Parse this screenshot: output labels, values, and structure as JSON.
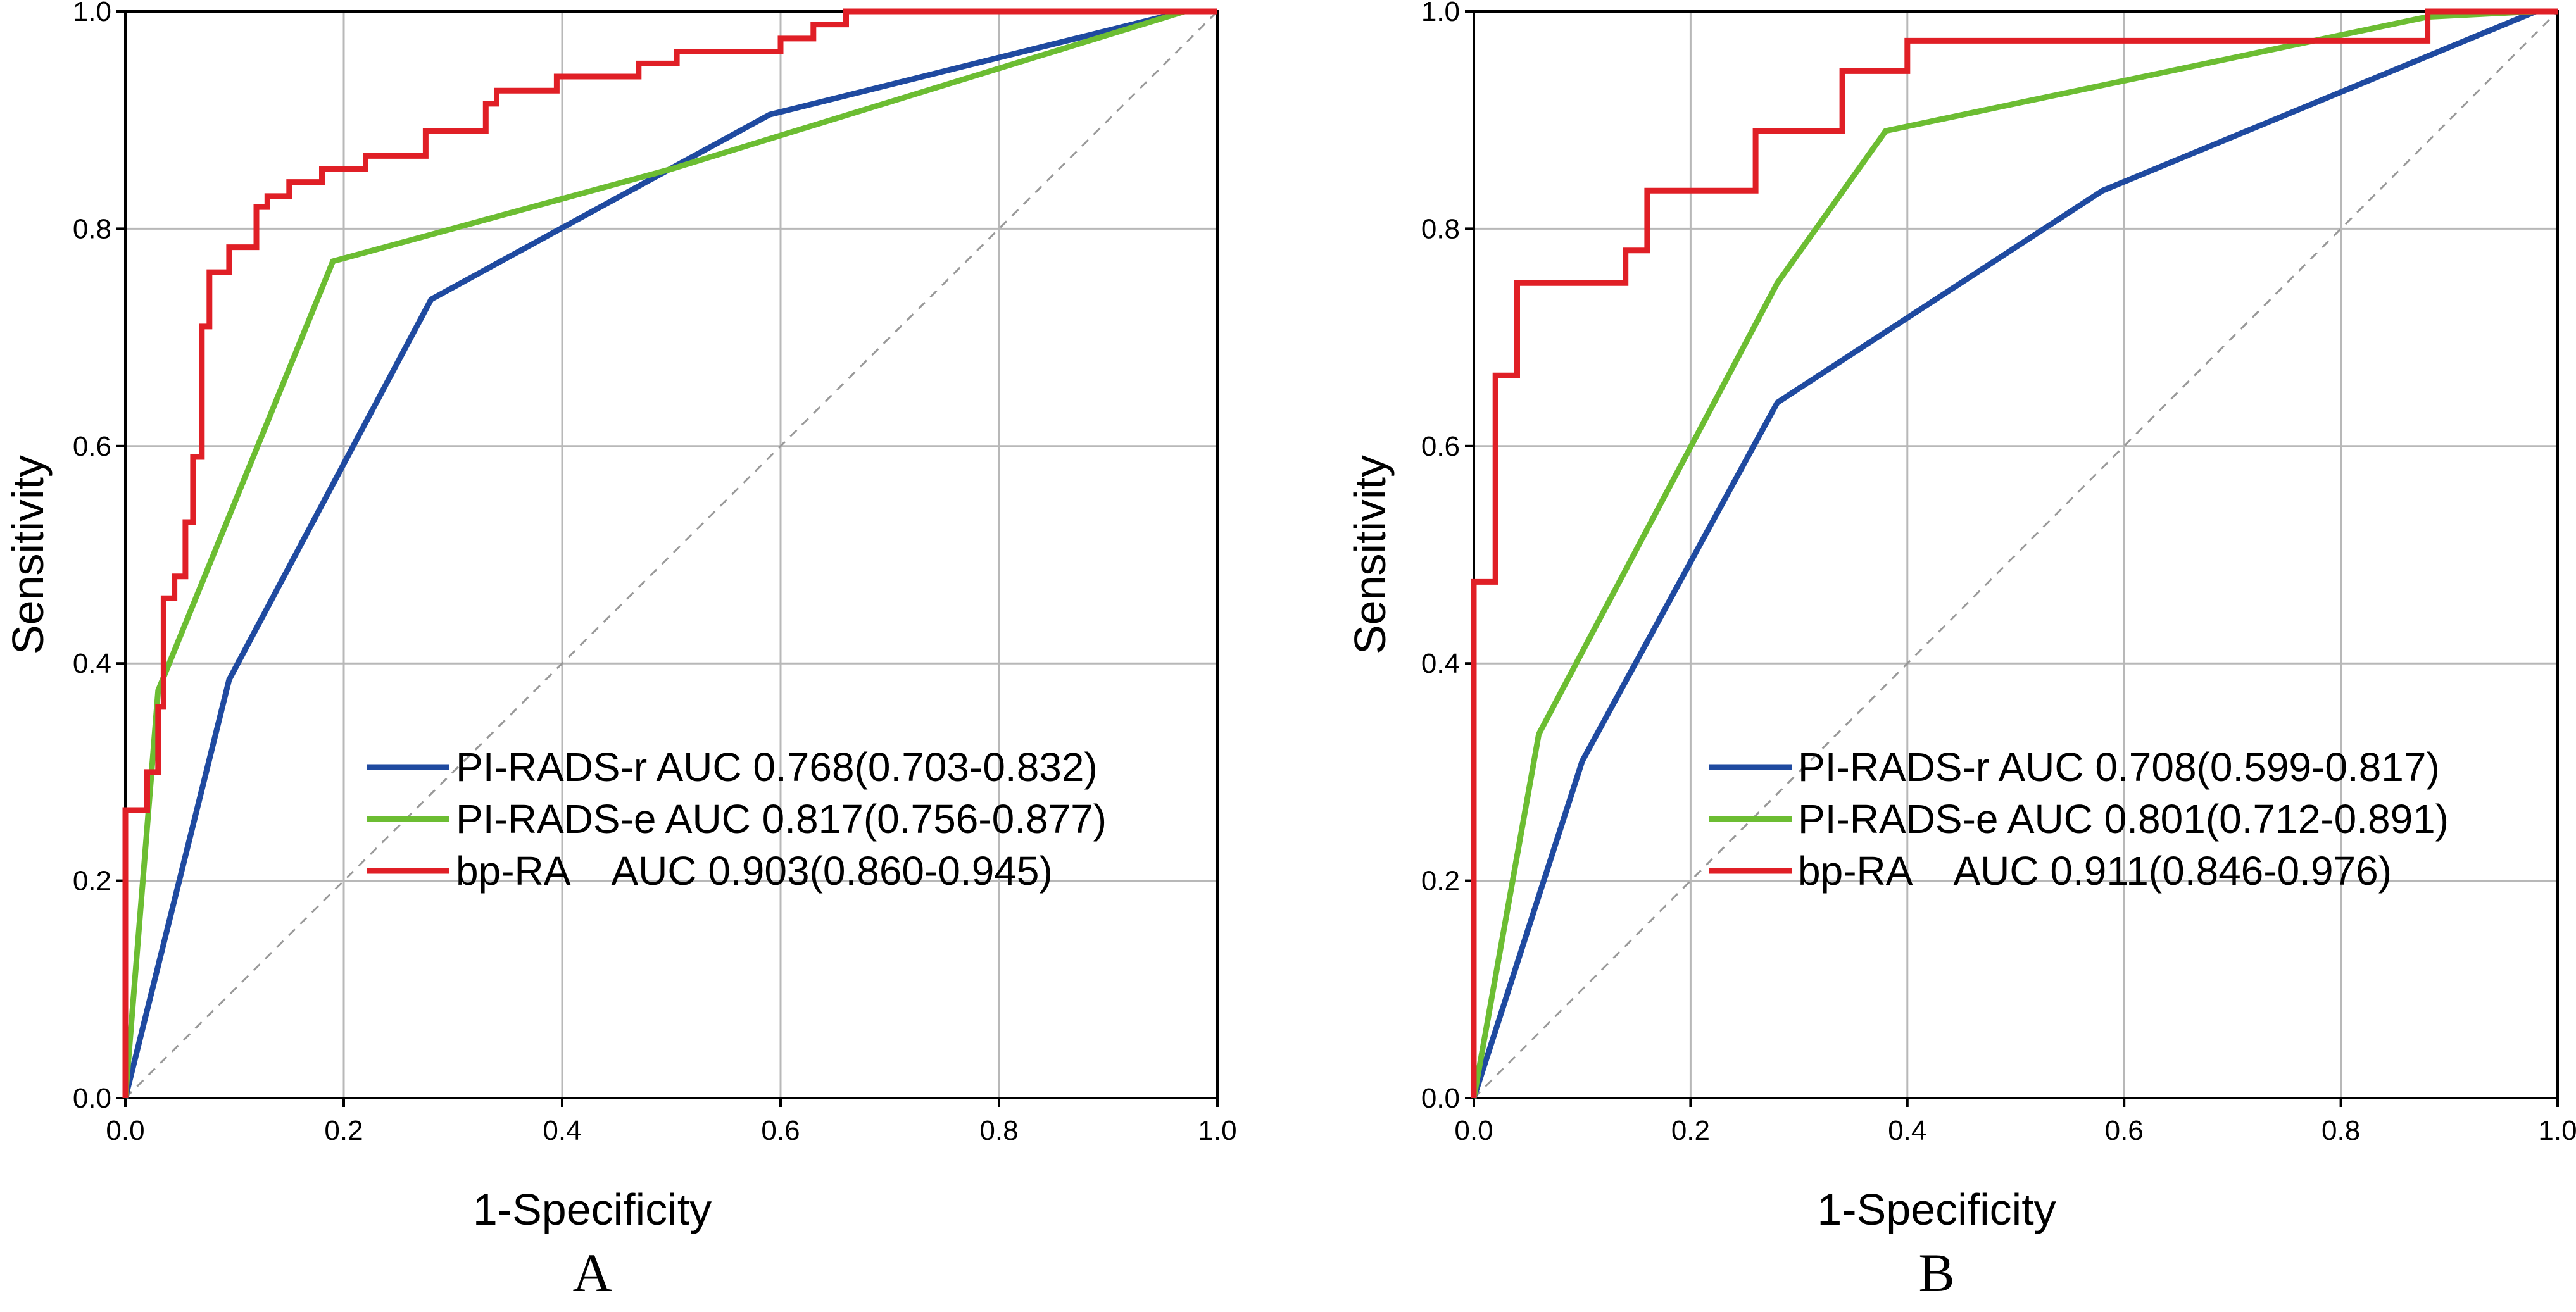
{
  "colors": {
    "pirads_r": "#1f4aa0",
    "pirads_e": "#6cbd32",
    "bp_ra": "#e01f26",
    "grid": "#b8b8b8",
    "diagonal": "#999999",
    "axis": "#000000"
  },
  "chart_data": [
    {
      "type": "line",
      "panel_label": "A",
      "xlabel": "1-Specificity",
      "ylabel": "Sensitivity",
      "xlim": [
        0,
        1
      ],
      "ylim": [
        0,
        1
      ],
      "x_ticks": [
        "0.0",
        "0.2",
        "0.4",
        "0.6",
        "0.8",
        "1.0"
      ],
      "y_ticks": [
        "0.0",
        "0.2",
        "0.4",
        "0.6",
        "0.8",
        "1.0"
      ],
      "grid": true,
      "diagonal": [
        [
          0,
          0
        ],
        [
          1,
          1
        ]
      ],
      "legend_position": "lower-right",
      "series": [
        {
          "name": "PI-RADS-r",
          "color_key": "pirads_r",
          "label": "PI-RADS-r AUC 0.768(0.703-0.832)",
          "points": [
            [
              0,
              0
            ],
            [
              0.095,
              0.385
            ],
            [
              0.28,
              0.735
            ],
            [
              0.59,
              0.905
            ],
            [
              0.97,
              1.0
            ],
            [
              1.0,
              1.0
            ]
          ]
        },
        {
          "name": "PI-RADS-e",
          "color_key": "pirads_e",
          "label": "PI-RADS-e AUC 0.817(0.756-0.877)",
          "points": [
            [
              0,
              0
            ],
            [
              0.03,
              0.375
            ],
            [
              0.19,
              0.77
            ],
            [
              0.5,
              0.855
            ],
            [
              0.97,
              1.0
            ],
            [
              1.0,
              1.0
            ]
          ]
        },
        {
          "name": "bp-RA",
          "color_key": "bp_ra",
          "label": "bp-RA    AUC 0.903(0.860-0.945)",
          "points": [
            [
              0,
              0
            ],
            [
              0,
              0.265
            ],
            [
              0.02,
              0.265
            ],
            [
              0.02,
              0.3
            ],
            [
              0.03,
              0.3
            ],
            [
              0.03,
              0.36
            ],
            [
              0.035,
              0.36
            ],
            [
              0.035,
              0.46
            ],
            [
              0.045,
              0.46
            ],
            [
              0.045,
              0.48
            ],
            [
              0.055,
              0.48
            ],
            [
              0.055,
              0.53
            ],
            [
              0.062,
              0.53
            ],
            [
              0.062,
              0.59
            ],
            [
              0.07,
              0.59
            ],
            [
              0.07,
              0.71
            ],
            [
              0.077,
              0.71
            ],
            [
              0.077,
              0.76
            ],
            [
              0.095,
              0.76
            ],
            [
              0.095,
              0.783
            ],
            [
              0.12,
              0.783
            ],
            [
              0.12,
              0.82
            ],
            [
              0.13,
              0.82
            ],
            [
              0.13,
              0.83
            ],
            [
              0.15,
              0.83
            ],
            [
              0.15,
              0.843
            ],
            [
              0.18,
              0.843
            ],
            [
              0.18,
              0.855
            ],
            [
              0.22,
              0.855
            ],
            [
              0.22,
              0.867
            ],
            [
              0.275,
              0.867
            ],
            [
              0.275,
              0.89
            ],
            [
              0.33,
              0.89
            ],
            [
              0.33,
              0.915
            ],
            [
              0.34,
              0.915
            ],
            [
              0.34,
              0.927
            ],
            [
              0.395,
              0.927
            ],
            [
              0.395,
              0.94
            ],
            [
              0.47,
              0.94
            ],
            [
              0.47,
              0.952
            ],
            [
              0.505,
              0.952
            ],
            [
              0.505,
              0.963
            ],
            [
              0.6,
              0.963
            ],
            [
              0.6,
              0.975
            ],
            [
              0.63,
              0.975
            ],
            [
              0.63,
              0.988
            ],
            [
              0.66,
              0.988
            ],
            [
              0.66,
              1.0
            ],
            [
              1.0,
              1.0
            ]
          ]
        }
      ]
    },
    {
      "type": "line",
      "panel_label": "B",
      "xlabel": "1-Specificity",
      "ylabel": "Sensitivity",
      "xlim": [
        0,
        1
      ],
      "ylim": [
        0,
        1
      ],
      "x_ticks": [
        "0.0",
        "0.2",
        "0.4",
        "0.6",
        "0.8",
        "1.0"
      ],
      "y_ticks": [
        "0.0",
        "0.2",
        "0.4",
        "0.6",
        "0.8",
        "1.0"
      ],
      "grid": true,
      "diagonal": [
        [
          0,
          0
        ],
        [
          1,
          1
        ]
      ],
      "legend_position": "lower-right",
      "series": [
        {
          "name": "PI-RADS-r",
          "color_key": "pirads_r",
          "label": "PI-RADS-r AUC 0.708(0.599-0.817)",
          "points": [
            [
              0,
              0
            ],
            [
              0.1,
              0.31
            ],
            [
              0.28,
              0.64
            ],
            [
              0.58,
              0.835
            ],
            [
              0.98,
              1.0
            ],
            [
              1.0,
              1.0
            ]
          ]
        },
        {
          "name": "PI-RADS-e",
          "color_key": "pirads_e",
          "label": "PI-RADS-e AUC 0.801(0.712-0.891)",
          "points": [
            [
              0,
              0
            ],
            [
              0.06,
              0.335
            ],
            [
              0.28,
              0.75
            ],
            [
              0.38,
              0.89
            ],
            [
              0.88,
              0.995
            ],
            [
              0.98,
              1.0
            ],
            [
              1.0,
              1.0
            ]
          ]
        },
        {
          "name": "bp-RA",
          "color_key": "bp_ra",
          "label": "bp-RA    AUC 0.911(0.846-0.976)",
          "points": [
            [
              0,
              0
            ],
            [
              0,
              0.475
            ],
            [
              0.02,
              0.475
            ],
            [
              0.02,
              0.665
            ],
            [
              0.04,
              0.665
            ],
            [
              0.04,
              0.75
            ],
            [
              0.14,
              0.75
            ],
            [
              0.14,
              0.78
            ],
            [
              0.16,
              0.78
            ],
            [
              0.16,
              0.835
            ],
            [
              0.26,
              0.835
            ],
            [
              0.26,
              0.89
            ],
            [
              0.34,
              0.89
            ],
            [
              0.34,
              0.945
            ],
            [
              0.4,
              0.945
            ],
            [
              0.4,
              0.973
            ],
            [
              0.88,
              0.973
            ],
            [
              0.88,
              1.0
            ],
            [
              1.0,
              1.0
            ]
          ]
        }
      ]
    }
  ]
}
